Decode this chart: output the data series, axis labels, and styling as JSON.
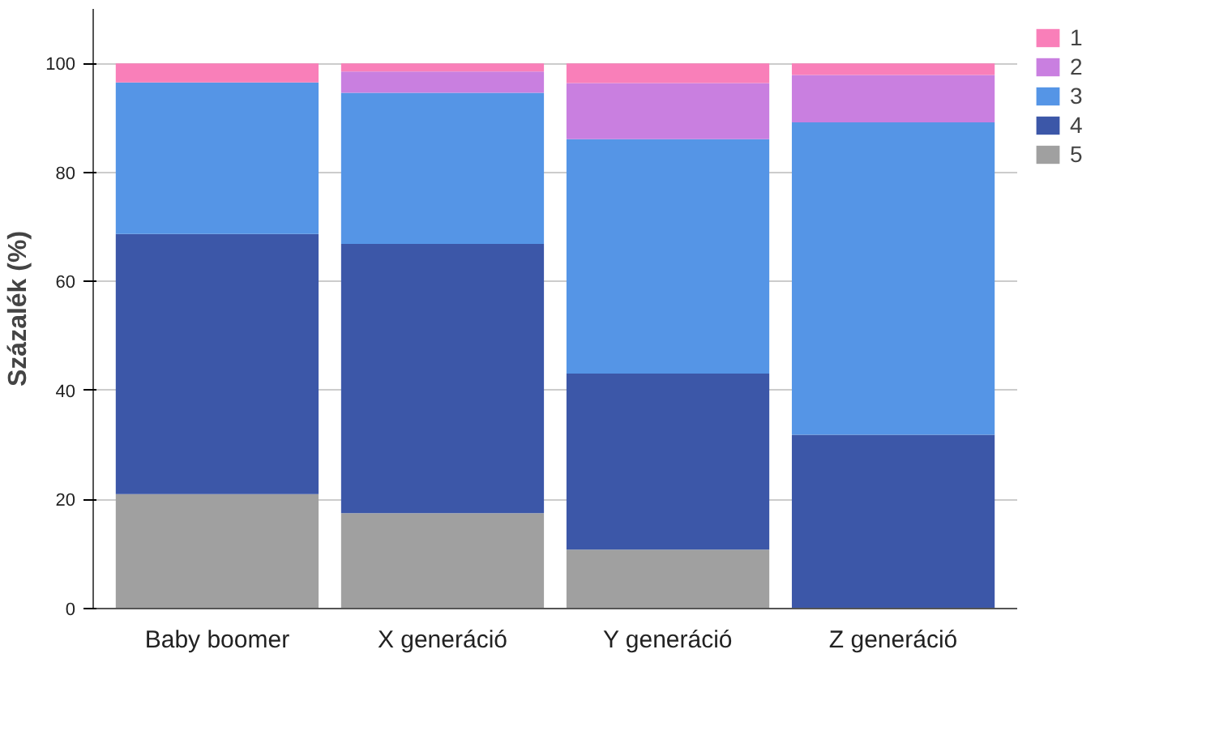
{
  "chart_data": {
    "type": "bar",
    "stacked": true,
    "ylabel": "Százalék (%)",
    "categories": [
      "Baby boomer",
      "X generáció",
      "Y generáció",
      "Z generáció"
    ],
    "series": [
      {
        "name": "5",
        "color": "#a0a0a0",
        "values": [
          21,
          17.5,
          10.8,
          0
        ]
      },
      {
        "name": "4",
        "color": "#3c57a8",
        "values": [
          47.7,
          49.4,
          32.3,
          31.9
        ]
      },
      {
        "name": "3",
        "color": "#5595e6",
        "values": [
          27.8,
          27.7,
          43,
          57.3
        ]
      },
      {
        "name": "2",
        "color": "#c97fe0",
        "values": [
          0,
          3.9,
          10.3,
          8.7
        ]
      },
      {
        "name": "1",
        "color": "#f97fb9",
        "values": [
          3.5,
          1.5,
          3.6,
          2.1
        ]
      }
    ],
    "ylim": [
      0,
      110
    ],
    "yticks": [
      0,
      20,
      40,
      60,
      80,
      100
    ],
    "grid": "y",
    "legend": "right"
  }
}
